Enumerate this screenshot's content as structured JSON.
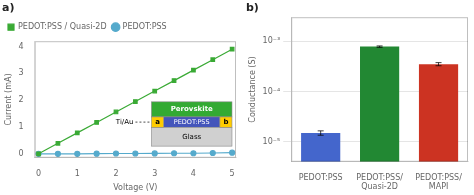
{
  "chart_data": [
    {
      "type": "line",
      "title": "a)",
      "x_label": "Voltage (V)",
      "y_label": "Current (mA)",
      "x": [
        0,
        0.5,
        1.0,
        1.5,
        2.0,
        2.5,
        3.0,
        3.5,
        4.0,
        4.5,
        5.0
      ],
      "series": [
        {
          "name": "PEDOT:PSS / Quasi-2D",
          "color": "#3aaa35",
          "marker": "square",
          "values": [
            0.0,
            0.39,
            0.78,
            1.17,
            1.56,
            1.95,
            2.34,
            2.73,
            3.12,
            3.51,
            3.9
          ]
        },
        {
          "name": "PEDOT:PSS",
          "color": "#55aacc",
          "marker": "circle",
          "values": [
            0.0,
            0.0,
            0.0,
            0.005,
            0.01,
            0.01,
            0.015,
            0.02,
            0.02,
            0.03,
            0.04
          ]
        }
      ],
      "xlim": [
        -0.1,
        5.1
      ],
      "xticks": [
        0,
        1,
        2,
        3,
        4,
        5
      ],
      "ylim": [
        -0.15,
        4.2
      ],
      "yticks": [
        0,
        1,
        2,
        3,
        4
      ],
      "grid": false,
      "legend": "upper left",
      "annotations": [
        {
          "text": "Perovskite",
          "color": "#33aa33"
        },
        {
          "text": "PEDOT:PSS",
          "color": "#4455bb"
        },
        {
          "text": "Glass",
          "color": "#d0d0d0"
        },
        {
          "text": "a",
          "color": "#ffcc00"
        },
        {
          "text": "b",
          "color": "#ffcc00"
        },
        {
          "text": "Ti/Au"
        }
      ]
    },
    {
      "type": "bar",
      "title": "b)",
      "y_label": "Conductance (S)",
      "categories": [
        "PEDOT:PSS",
        "PEDOT:PSS/\nQuasi-2D",
        "PEDOT:PSS/\nMAPI"
      ],
      "values": [
        1.5e-05,
        0.00078,
        0.00035
      ],
      "errors": [
        1.5e-06,
        2.5e-05,
        2.5e-05
      ],
      "colors": [
        "#4466cc",
        "#228833",
        "#cc3322"
      ],
      "log": "y",
      "ylim": [
        4e-06,
        0.003
      ],
      "yticks": [
        {
          "value": 1e-05,
          "label": "10⁻⁵"
        },
        {
          "value": 0.0001,
          "label": "10⁻⁴"
        },
        {
          "value": 0.001,
          "label": "10⁻³"
        }
      ],
      "grid": "y"
    }
  ]
}
